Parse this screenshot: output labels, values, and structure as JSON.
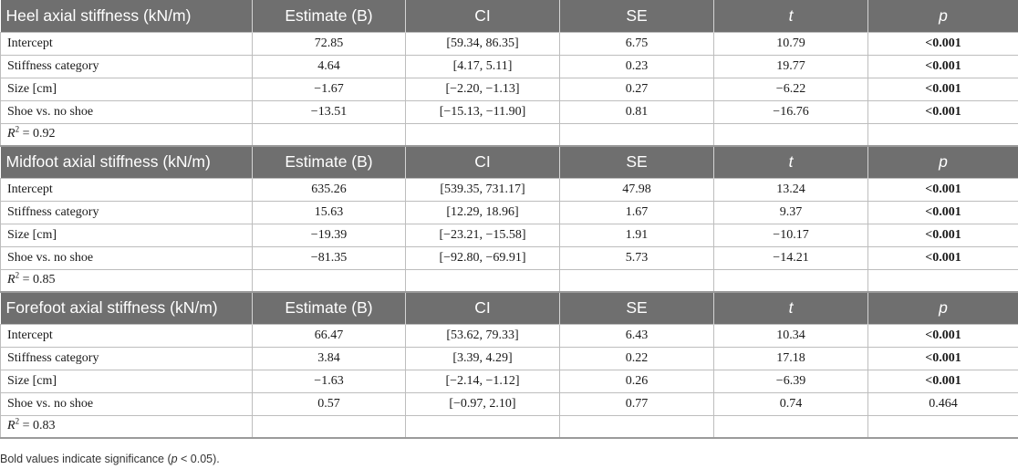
{
  "columns": [
    "Estimate (B)",
    "CI",
    "SE",
    "t",
    "p"
  ],
  "sections": [
    {
      "title": "Heel axial stiffness (kN/m)",
      "rows": [
        {
          "label": "Intercept",
          "values": [
            "72.85",
            "[59.34, 86.35]",
            "6.75",
            "10.79",
            "<0.001"
          ],
          "significant": true
        },
        {
          "label": "Stiffness category",
          "values": [
            "4.64",
            "[4.17, 5.11]",
            "0.23",
            "19.77",
            "<0.001"
          ],
          "significant": true
        },
        {
          "label": "Size [cm]",
          "values": [
            "−1.67",
            "[−2.20, −1.13]",
            "0.27",
            "−6.22",
            "<0.001"
          ],
          "significant": true
        },
        {
          "label": "Shoe vs. no shoe",
          "values": [
            "−13.51",
            "[−15.13, −11.90]",
            "0.81",
            "−16.76",
            "<0.001"
          ],
          "significant": true
        }
      ],
      "r2": "0.92"
    },
    {
      "title": "Midfoot axial stiffness (kN/m)",
      "rows": [
        {
          "label": "Intercept",
          "values": [
            "635.26",
            "[539.35, 731.17]",
            "47.98",
            "13.24",
            "<0.001"
          ],
          "significant": true
        },
        {
          "label": "Stiffness category",
          "values": [
            "15.63",
            "[12.29, 18.96]",
            "1.67",
            "9.37",
            "<0.001"
          ],
          "significant": true
        },
        {
          "label": "Size [cm]",
          "values": [
            "−19.39",
            "[−23.21, −15.58]",
            "1.91",
            "−10.17",
            "<0.001"
          ],
          "significant": true
        },
        {
          "label": "Shoe vs. no shoe",
          "values": [
            "−81.35",
            "[−92.80, −69.91]",
            "5.73",
            "−14.21",
            "<0.001"
          ],
          "significant": true
        }
      ],
      "r2": "0.85"
    },
    {
      "title": "Forefoot axial stiffness (kN/m)",
      "rows": [
        {
          "label": "Intercept",
          "values": [
            "66.47",
            "[53.62, 79.33]",
            "6.43",
            "10.34",
            "<0.001"
          ],
          "significant": true
        },
        {
          "label": "Stiffness category",
          "values": [
            "3.84",
            "[3.39, 4.29]",
            "0.22",
            "17.18",
            "<0.001"
          ],
          "significant": true
        },
        {
          "label": "Size [cm]",
          "values": [
            "−1.63",
            "[−2.14, −1.12]",
            "0.26",
            "−6.39",
            "<0.001"
          ],
          "significant": true
        },
        {
          "label": "Shoe vs. no shoe",
          "values": [
            "0.57",
            "[−0.97, 2.10]",
            "0.77",
            "0.74",
            "0.464"
          ],
          "significant": false
        }
      ],
      "r2": "0.83"
    }
  ],
  "r2_label": "R",
  "r2_sup": "2",
  "r2_eq": " = ",
  "footnote": {
    "prefix": "Bold values indicate significance (",
    "p": "p",
    "suffix": " < 0.05)."
  }
}
